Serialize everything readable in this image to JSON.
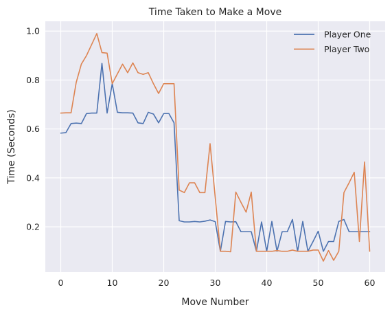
{
  "chart_data": {
    "type": "line",
    "title": "Time Taken to Make a Move",
    "xlabel": "Move Number",
    "ylabel": "Time (Seconds)",
    "xlim": [
      -3,
      63
    ],
    "ylim": [
      0.015,
      1.04
    ],
    "xticks": [
      0,
      10,
      20,
      30,
      40,
      50,
      60
    ],
    "yticks": [
      0.2,
      0.4,
      0.6,
      0.8,
      1.0
    ],
    "ytick_labels": [
      "0.2",
      "0.4",
      "0.6",
      "0.8",
      "1.0"
    ],
    "grid": true,
    "legend_position": "top-right",
    "background": "#eaeaf2",
    "x": [
      0,
      1,
      2,
      3,
      4,
      5,
      6,
      7,
      8,
      9,
      10,
      11,
      12,
      13,
      14,
      15,
      16,
      17,
      18,
      19,
      20,
      21,
      22,
      23,
      24,
      25,
      26,
      27,
      28,
      29,
      30,
      31,
      32,
      33,
      34,
      35,
      36,
      37,
      38,
      39,
      40,
      41,
      42,
      43,
      44,
      45,
      46,
      47,
      48,
      49,
      50,
      51,
      52,
      53,
      54,
      55,
      56,
      57,
      58,
      59,
      60
    ],
    "series": [
      {
        "name": "Player One",
        "color": "#4c72b0",
        "values": [
          0.583,
          0.585,
          0.622,
          0.624,
          0.622,
          0.663,
          0.665,
          0.665,
          0.868,
          0.665,
          0.785,
          0.668,
          0.666,
          0.666,
          0.665,
          0.625,
          0.622,
          0.668,
          0.661,
          0.625,
          0.663,
          0.663,
          0.625,
          0.225,
          0.22,
          0.22,
          0.222,
          0.22,
          0.223,
          0.228,
          0.221,
          0.1,
          0.222,
          0.22,
          0.221,
          0.18,
          0.18,
          0.18,
          0.1,
          0.22,
          0.1,
          0.222,
          0.1,
          0.18,
          0.18,
          0.23,
          0.1,
          0.222,
          0.1,
          0.14,
          0.182,
          0.1,
          0.14,
          0.14,
          0.222,
          0.23,
          0.18,
          0.18,
          0.18,
          0.18,
          0.18
        ]
      },
      {
        "name": "Player Two",
        "color": "#dd8452",
        "values": [
          0.665,
          0.666,
          0.666,
          0.79,
          0.865,
          0.9,
          0.945,
          0.99,
          0.912,
          0.91,
          0.785,
          0.825,
          0.865,
          0.83,
          0.87,
          0.83,
          0.823,
          0.83,
          0.785,
          0.745,
          0.785,
          0.785,
          0.785,
          0.35,
          0.34,
          0.38,
          0.38,
          0.34,
          0.34,
          0.54,
          0.32,
          0.1,
          0.1,
          0.098,
          0.342,
          0.3,
          0.26,
          0.342,
          0.1,
          0.1,
          0.1,
          0.1,
          0.103,
          0.1,
          0.1,
          0.105,
          0.1,
          0.1,
          0.1,
          0.105,
          0.105,
          0.06,
          0.103,
          0.063,
          0.1,
          0.34,
          0.38,
          0.423,
          0.14,
          0.465,
          0.1
        ]
      }
    ]
  }
}
